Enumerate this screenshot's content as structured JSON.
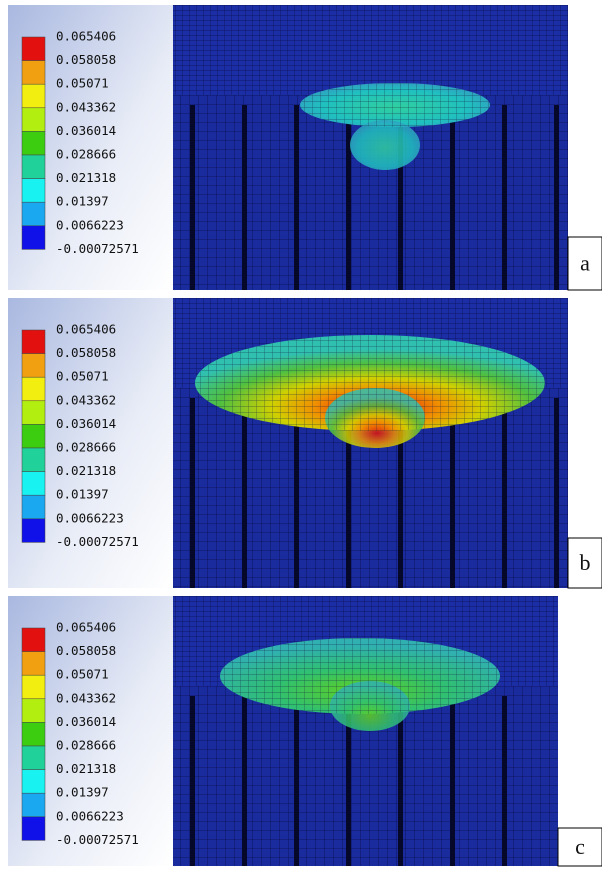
{
  "panels": [
    {
      "label": "a",
      "legend": [
        "0.065406",
        "0.058058",
        "0.05071",
        "0.043362",
        "0.036014",
        "0.028666",
        "0.021318",
        "0.01397",
        "0.0066223",
        "-0.00072571"
      ]
    },
    {
      "label": "b",
      "legend": [
        "0.065406",
        "0.058058",
        "0.05071",
        "0.043362",
        "0.036014",
        "0.028666",
        "0.021318",
        "0.01397",
        "0.0066223",
        "-0.00072571"
      ]
    },
    {
      "label": "c",
      "legend": [
        "0.065406",
        "0.058058",
        "0.05071",
        "0.043362",
        "0.036014",
        "0.028666",
        "0.021318",
        "0.01397",
        "0.0066223",
        "-0.00072571"
      ]
    }
  ]
}
